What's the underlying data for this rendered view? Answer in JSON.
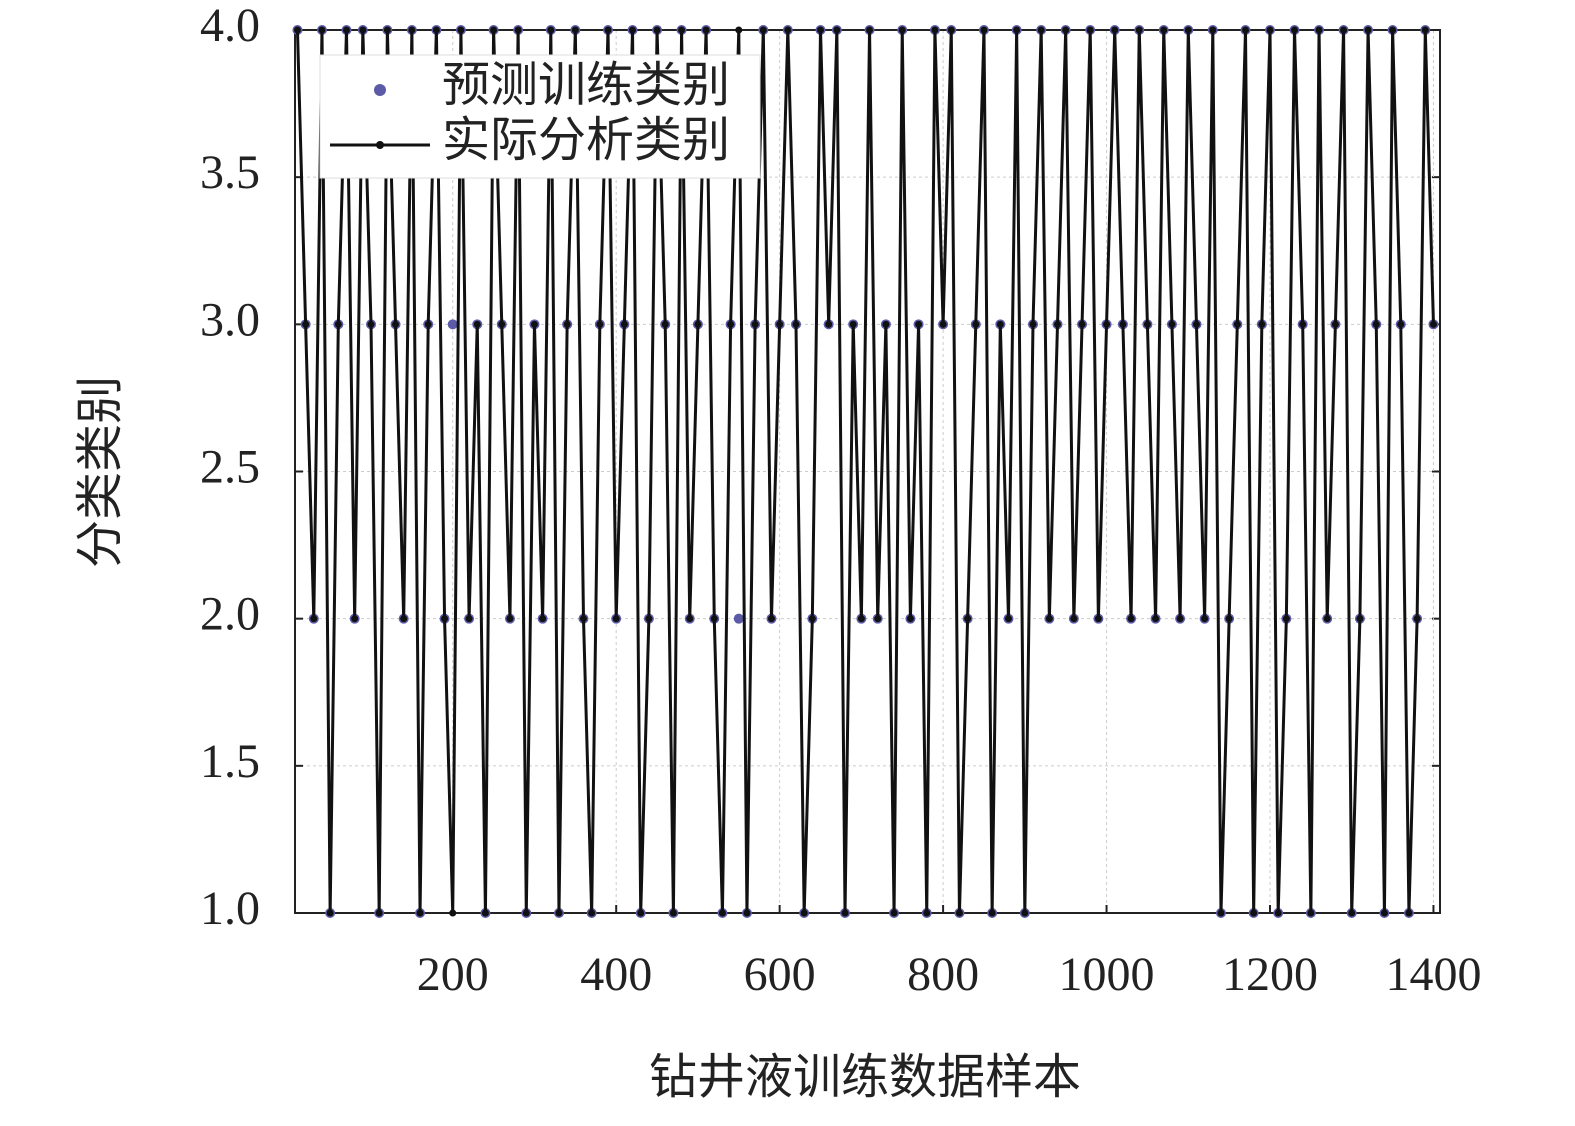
{
  "chart_data": {
    "type": "line",
    "x_label": "钻井液训练数据样本",
    "y_label": "分类类别",
    "x": [
      10,
      20,
      30,
      40,
      50,
      60,
      70,
      80,
      90,
      100,
      110,
      120,
      130,
      140,
      150,
      160,
      170,
      180,
      190,
      200,
      210,
      220,
      230,
      240,
      250,
      260,
      270,
      280,
      290,
      300,
      310,
      320,
      330,
      340,
      350,
      360,
      370,
      380,
      390,
      400,
      410,
      420,
      430,
      440,
      450,
      460,
      470,
      480,
      490,
      500,
      510,
      520,
      530,
      540,
      550,
      560,
      570,
      580,
      590,
      600,
      610,
      620,
      630,
      640,
      650,
      660,
      670,
      680,
      690,
      700,
      710,
      720,
      730,
      740,
      750,
      760,
      770,
      780,
      790,
      800,
      810,
      820,
      830,
      840,
      850,
      860,
      870,
      880,
      890,
      900,
      910,
      920,
      930,
      940,
      950,
      960,
      970,
      980,
      990,
      1000,
      1010,
      1020,
      1030,
      1040,
      1050,
      1060,
      1070,
      1080,
      1090,
      1100,
      1110,
      1120,
      1130,
      1140,
      1150,
      1160,
      1170,
      1180,
      1190,
      1200,
      1210,
      1220,
      1230,
      1240,
      1250,
      1260,
      1270,
      1280,
      1290,
      1300,
      1310,
      1320,
      1330,
      1340,
      1350,
      1360,
      1370,
      1380,
      1390,
      1400
    ],
    "series": [
      {
        "name": "预测训练类别",
        "type": "scatter",
        "color": "#5b5ba8",
        "values": [
          4,
          3,
          2,
          4,
          1,
          3,
          4,
          2,
          4,
          3,
          1,
          4,
          3,
          2,
          4,
          1,
          3,
          4,
          2,
          3,
          4,
          2,
          3,
          1,
          4,
          3,
          2,
          4,
          1,
          3,
          2,
          4,
          1,
          3,
          4,
          2,
          1,
          3,
          4,
          2,
          3,
          4,
          1,
          2,
          4,
          3,
          1,
          4,
          2,
          3,
          4,
          2,
          1,
          3,
          2,
          1,
          3,
          4,
          2,
          3,
          4,
          3,
          1,
          2,
          4,
          3,
          4,
          1,
          3,
          2,
          4,
          2,
          3,
          1,
          4,
          2,
          3,
          1,
          4,
          3,
          4,
          1,
          2,
          3,
          4,
          1,
          3,
          2,
          4,
          1,
          3,
          4,
          2,
          3,
          4,
          2,
          3,
          4,
          2,
          3,
          4,
          3,
          2,
          4,
          3,
          2,
          4,
          3,
          2,
          4,
          3,
          2,
          4,
          1,
          2,
          3,
          4,
          1,
          3,
          4,
          1,
          2,
          4,
          3,
          1,
          4,
          2,
          3,
          4,
          1,
          2,
          4,
          3,
          1,
          4,
          3,
          1,
          2,
          4,
          3
        ]
      },
      {
        "name": "实际分析类别",
        "type": "line",
        "color": "#111111",
        "values": [
          4,
          3,
          2,
          4,
          1,
          3,
          4,
          2,
          4,
          3,
          1,
          4,
          3,
          2,
          4,
          1,
          3,
          4,
          2,
          1,
          4,
          2,
          3,
          1,
          4,
          3,
          2,
          4,
          1,
          3,
          2,
          4,
          1,
          3,
          4,
          2,
          1,
          3,
          4,
          2,
          3,
          4,
          1,
          2,
          4,
          3,
          1,
          4,
          2,
          3,
          4,
          2,
          1,
          3,
          4,
          1,
          3,
          4,
          2,
          3,
          4,
          3,
          1,
          2,
          4,
          3,
          4,
          1,
          3,
          2,
          4,
          2,
          3,
          1,
          4,
          2,
          3,
          1,
          4,
          3,
          4,
          1,
          2,
          3,
          4,
          1,
          3,
          2,
          4,
          1,
          3,
          4,
          2,
          3,
          4,
          2,
          3,
          4,
          2,
          3,
          4,
          3,
          2,
          4,
          3,
          2,
          4,
          3,
          2,
          4,
          3,
          2,
          4,
          1,
          2,
          3,
          4,
          1,
          3,
          4,
          1,
          2,
          4,
          3,
          1,
          4,
          2,
          3,
          4,
          1,
          2,
          4,
          3,
          1,
          4,
          3,
          1,
          2,
          4,
          3
        ]
      }
    ],
    "xlim": [
      7,
      1408
    ],
    "xticks": [
      200,
      400,
      600,
      800,
      1000,
      1200,
      1400
    ],
    "ylim": [
      1,
      4
    ],
    "yticks": [
      {
        "value": 1,
        "label": "1.0"
      },
      {
        "value": 1.5,
        "label": "1.5"
      },
      {
        "value": 2,
        "label": "2.0"
      },
      {
        "value": 2.5,
        "label": "2.5"
      },
      {
        "value": 3,
        "label": "3.0"
      },
      {
        "value": 3.5,
        "label": "3.5"
      },
      {
        "value": 4,
        "label": "4.0"
      }
    ],
    "grid": true,
    "legend": "upper left"
  }
}
